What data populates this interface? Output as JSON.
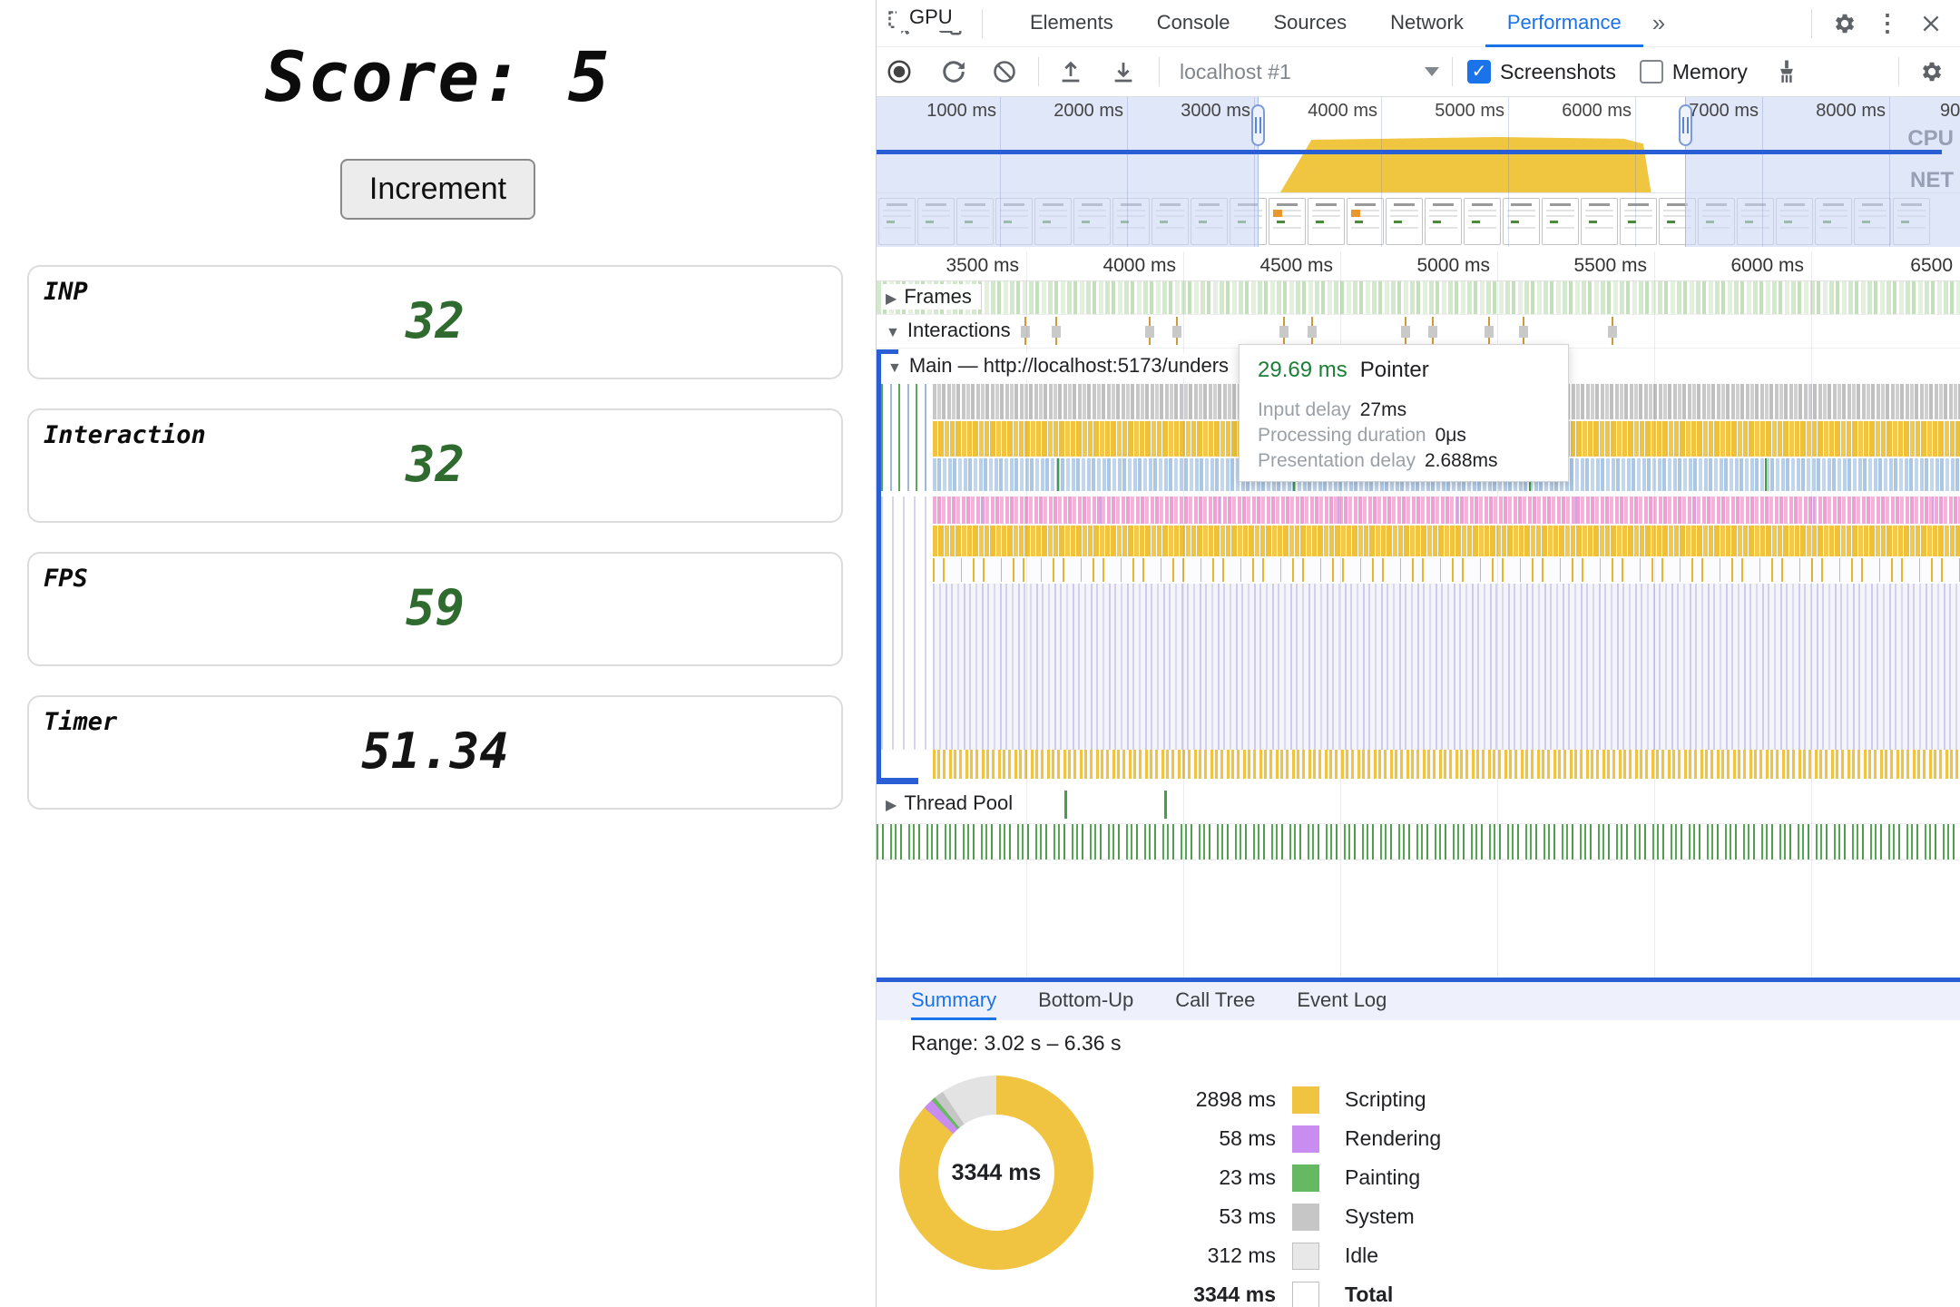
{
  "app": {
    "title": "Score: 5",
    "button_label": "Increment",
    "value_green": "#2f6b2f",
    "cards": [
      {
        "label": "INP",
        "value": "32",
        "value_color": "#2f6b2f"
      },
      {
        "label": "Interaction",
        "value": "32",
        "value_color": "#2f6b2f"
      },
      {
        "label": "FPS",
        "value": "59",
        "value_color": "#2f6b2f"
      },
      {
        "label": "Timer",
        "value": "51.34",
        "value_color": "#141414"
      }
    ]
  },
  "devtools": {
    "tabs": [
      "Elements",
      "Console",
      "Sources",
      "Network",
      "Performance"
    ],
    "active_tab": "Performance",
    "more_tabs_glyph": "»",
    "toolbar": {
      "session_label": "localhost #1",
      "screenshots_label": "Screenshots",
      "screenshots_checked": true,
      "memory_label": "Memory",
      "memory_checked": false
    },
    "overview": {
      "ticks": [
        "1000 ms",
        "2000 ms",
        "3000 ms",
        "4000 ms",
        "5000 ms",
        "6000 ms",
        "7000 ms",
        "8000 ms"
      ],
      "edge_tick": "90",
      "cpu_label": "CPU",
      "net_label": "NET",
      "filmstrip_count": 27
    },
    "ruler_ticks": [
      "3500 ms",
      "4000 ms",
      "4500 ms",
      "5000 ms",
      "5500 ms",
      "6000 ms",
      "6500"
    ],
    "tracks": {
      "frames": "Frames",
      "interactions": "Interactions",
      "main": "Main — http://localhost:5173/unders",
      "thread_pool": "Thread Pool",
      "gpu": "GPU"
    },
    "interaction_marker_offsets": [
      163,
      197,
      300,
      330,
      448,
      479,
      582,
      612,
      674,
      712,
      810
    ],
    "tooltip": {
      "duration": "29.69 ms",
      "type": "Pointer",
      "rows": [
        {
          "label": "Input delay",
          "value": "27ms"
        },
        {
          "label": "Processing duration",
          "value": "0μs"
        },
        {
          "label": "Presentation delay",
          "value": "2.688ms"
        }
      ]
    },
    "bottom_tabs": [
      "Summary",
      "Bottom-Up",
      "Call Tree",
      "Event Log"
    ],
    "active_bottom_tab": "Summary",
    "summary": {
      "range": "Range: 3.02 s – 6.36 s",
      "donut_center": "3344 ms",
      "legend": [
        {
          "value": "2898 ms",
          "label": "Scripting",
          "color": "#f0c440",
          "bordered": false,
          "bold": false
        },
        {
          "value": "58 ms",
          "label": "Rendering",
          "color": "#c98cf0",
          "bordered": false,
          "bold": false
        },
        {
          "value": "23 ms",
          "label": "Painting",
          "color": "#67b862",
          "bordered": false,
          "bold": false
        },
        {
          "value": "53 ms",
          "label": "System",
          "color": "#c6c6c6",
          "bordered": false,
          "bold": false
        },
        {
          "value": "312 ms",
          "label": "Idle",
          "color": "#e8e8e8",
          "bordered": true,
          "bold": false
        },
        {
          "value": "3344 ms",
          "label": "Total",
          "color": "#ffffff",
          "bordered": true,
          "bold": true
        }
      ]
    }
  },
  "chart_data": {
    "type": "pie",
    "title": "Performance summary donut",
    "center_label": "3344 ms",
    "total_ms": 3344,
    "range": "3.02 s – 6.36 s",
    "slices": [
      {
        "label": "Scripting",
        "value": 2898,
        "color": "#f0c440"
      },
      {
        "label": "Rendering",
        "value": 58,
        "color": "#c98cf0"
      },
      {
        "label": "Painting",
        "value": 23,
        "color": "#67b862"
      },
      {
        "label": "System",
        "value": 53,
        "color": "#c6c6c6"
      },
      {
        "label": "Idle",
        "value": 312,
        "color": "#e3e3e3"
      }
    ]
  }
}
